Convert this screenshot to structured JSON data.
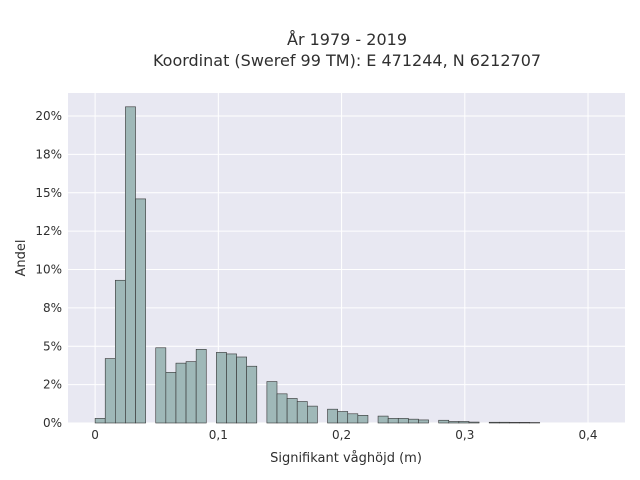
{
  "chart_data": {
    "type": "bar",
    "title_line1": "År 1979 - 2019",
    "title_line2": "Koordinat (Sweref 99 TM): E 471244, N 6212707",
    "xlabel": "Signifikant våghöjd (m)",
    "ylabel": "Andel",
    "xlim": [
      -0.022,
      0.43
    ],
    "ylim": [
      0,
      21.5
    ],
    "x_ticks": [
      {
        "value": 0,
        "label": "0"
      },
      {
        "value": 0.1,
        "label": "0,1"
      },
      {
        "value": 0.2,
        "label": "0,2"
      },
      {
        "value": 0.3,
        "label": "0,3"
      },
      {
        "value": 0.4,
        "label": "0,4"
      }
    ],
    "y_ticks": [
      {
        "value": 0,
        "label": "0%"
      },
      {
        "value": 2.5,
        "label": "2%"
      },
      {
        "value": 5,
        "label": "5%"
      },
      {
        "value": 7.5,
        "label": "8%"
      },
      {
        "value": 10,
        "label": "10%"
      },
      {
        "value": 12.5,
        "label": "12%"
      },
      {
        "value": 15,
        "label": "15%"
      },
      {
        "value": 17.5,
        "label": "18%"
      },
      {
        "value": 20,
        "label": "20%"
      }
    ],
    "bin_width": 0.0082,
    "grid": true,
    "colors": {
      "plot_bg": "#e8e8f2",
      "grid": "#ffffff",
      "bar_fill": "#9fb8b8",
      "bar_stroke": "#333333"
    },
    "bars": [
      {
        "x": 0.0,
        "value": 0.3
      },
      {
        "x": 0.0082,
        "value": 4.2
      },
      {
        "x": 0.0164,
        "value": 9.3
      },
      {
        "x": 0.0246,
        "value": 20.6
      },
      {
        "x": 0.0328,
        "value": 14.6
      },
      {
        "x": 0.0492,
        "value": 4.9
      },
      {
        "x": 0.0574,
        "value": 3.3
      },
      {
        "x": 0.0656,
        "value": 3.9
      },
      {
        "x": 0.0738,
        "value": 4.0
      },
      {
        "x": 0.082,
        "value": 4.8
      },
      {
        "x": 0.0984,
        "value": 4.6
      },
      {
        "x": 0.1066,
        "value": 4.5
      },
      {
        "x": 0.1148,
        "value": 4.3
      },
      {
        "x": 0.123,
        "value": 3.7
      },
      {
        "x": 0.1394,
        "value": 2.7
      },
      {
        "x": 0.1476,
        "value": 1.9
      },
      {
        "x": 0.1558,
        "value": 1.6
      },
      {
        "x": 0.164,
        "value": 1.4
      },
      {
        "x": 0.1722,
        "value": 1.1
      },
      {
        "x": 0.1886,
        "value": 0.9
      },
      {
        "x": 0.1968,
        "value": 0.75
      },
      {
        "x": 0.205,
        "value": 0.6
      },
      {
        "x": 0.2132,
        "value": 0.5
      },
      {
        "x": 0.2296,
        "value": 0.45
      },
      {
        "x": 0.2378,
        "value": 0.3
      },
      {
        "x": 0.246,
        "value": 0.3
      },
      {
        "x": 0.2542,
        "value": 0.25
      },
      {
        "x": 0.2624,
        "value": 0.2
      },
      {
        "x": 0.2788,
        "value": 0.18
      },
      {
        "x": 0.287,
        "value": 0.1
      },
      {
        "x": 0.2952,
        "value": 0.1
      },
      {
        "x": 0.3034,
        "value": 0.06
      },
      {
        "x": 0.3198,
        "value": 0.05
      },
      {
        "x": 0.328,
        "value": 0.05
      },
      {
        "x": 0.3362,
        "value": 0.04
      },
      {
        "x": 0.3444,
        "value": 0.04
      },
      {
        "x": 0.3526,
        "value": 0.03
      }
    ]
  }
}
